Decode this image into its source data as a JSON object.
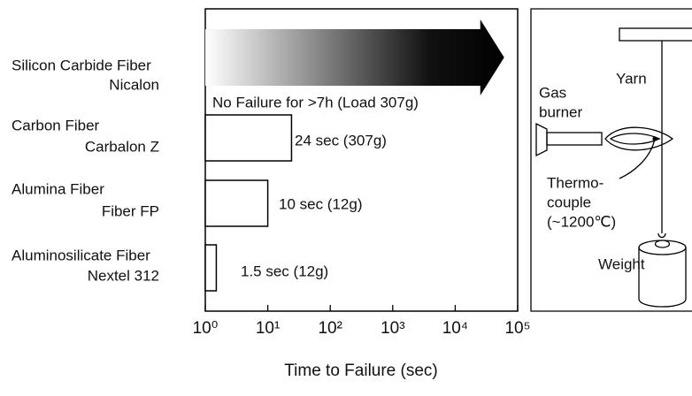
{
  "chart_data": {
    "type": "bar",
    "categories": [
      [
        "Silicon Carbide Fiber",
        "Nicalon"
      ],
      [
        "Carbon Fiber",
        "Carbalon Z"
      ],
      [
        "Alumina Fiber",
        "Fiber FP"
      ],
      [
        "Aluminosilicate Fiber",
        "Nextel 312"
      ]
    ],
    "values": [
      25200,
      24,
      10,
      1.5
    ],
    "value_labels": [
      "No Failure for >7h (Load 307g)",
      "24 sec (307g)",
      "10 sec (12g)",
      "1.5 sec (12g)"
    ],
    "xlim": [
      1,
      100000
    ],
    "log_x": true,
    "xticks": [
      {
        "value": 1,
        "label": "10⁰"
      },
      {
        "value": 10,
        "label": "10¹"
      },
      {
        "value": 100,
        "label": "10²"
      },
      {
        "value": 1000,
        "label": "10³"
      },
      {
        "value": 10000,
        "label": "10⁴"
      },
      {
        "value": 100000,
        "label": "10⁵"
      }
    ],
    "xlabel": "Time to Failure (sec)",
    "color": "#000000"
  },
  "diagram": {
    "yarn": "Yarn",
    "burner": [
      "Gas",
      "burner"
    ],
    "thermocouple": [
      "Thermo-",
      "couple",
      "(~1200℃)"
    ],
    "weight": "Weight"
  }
}
